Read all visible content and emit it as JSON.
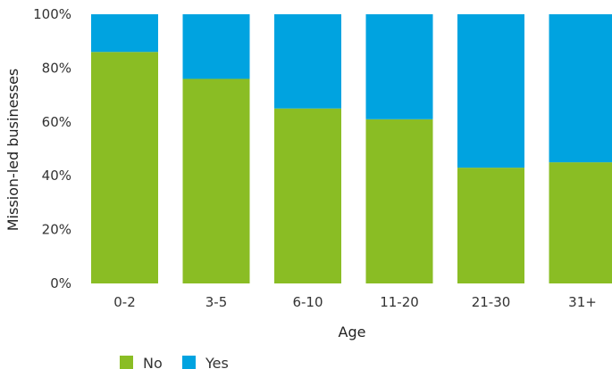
{
  "chart_data": {
    "type": "bar",
    "stacked": true,
    "categories": [
      "0-2",
      "3-5",
      "6-10",
      "11-20",
      "21-30",
      "31+"
    ],
    "series": [
      {
        "name": "No",
        "values": [
          86,
          76,
          65,
          61,
          43,
          45
        ],
        "color": "#8abd24"
      },
      {
        "name": "Yes",
        "values": [
          14,
          24,
          35,
          39,
          57,
          55
        ],
        "color": "#00a3e0"
      }
    ],
    "xlabel": "Age",
    "ylabel": "Mission-led businesses",
    "ylim": [
      0,
      100
    ],
    "yticks": [
      "0%",
      "20%",
      "40%",
      "60%",
      "80%",
      "100%"
    ],
    "grid": false,
    "legend_position": "bottom-left"
  }
}
